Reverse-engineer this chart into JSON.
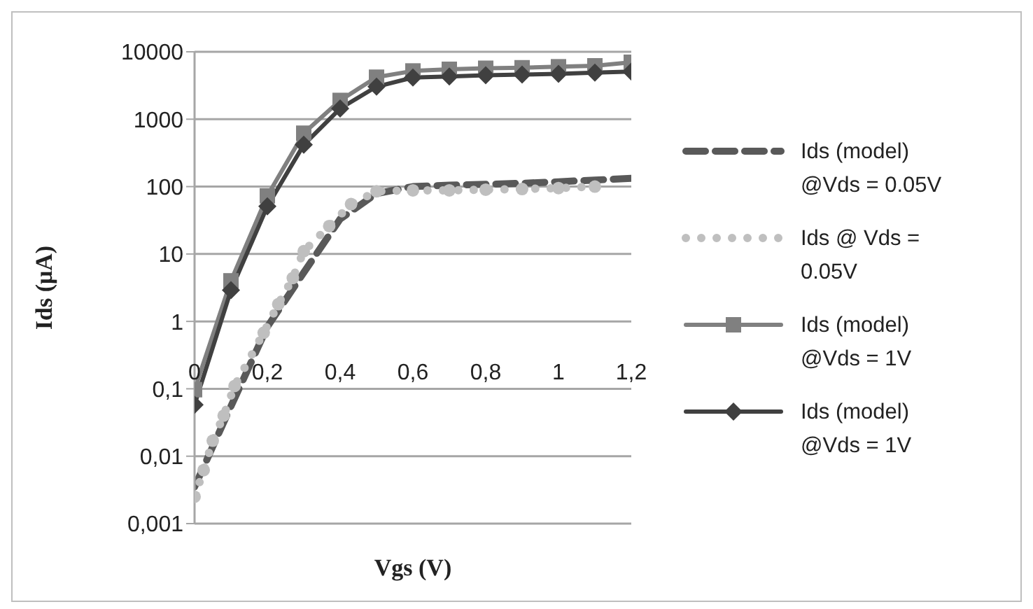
{
  "chart_data": {
    "type": "line",
    "xlabel": "Vgs (V)",
    "ylabel": "Ids (μA)",
    "log": "y",
    "grid": "y",
    "legend": "right",
    "x": [
      0,
      0.1,
      0.2,
      0.3,
      0.4,
      0.5,
      0.6,
      0.7,
      0.8,
      0.9,
      1.0,
      1.1,
      1.2
    ],
    "xlim": [
      0,
      1.2
    ],
    "xticks": [
      {
        "value": 0,
        "label": "0"
      },
      {
        "value": 0.2,
        "label": "0,2"
      },
      {
        "value": 0.4,
        "label": "0,4"
      },
      {
        "value": 0.6,
        "label": "0,6"
      },
      {
        "value": 0.8,
        "label": "0,8"
      },
      {
        "value": 1,
        "label": "1"
      },
      {
        "value": 1.2,
        "label": "1,2"
      }
    ],
    "ylim": [
      0.001,
      10000
    ],
    "yticks": [
      {
        "value": 0.001,
        "label": "0,001"
      },
      {
        "value": 0.01,
        "label": "0,01"
      },
      {
        "value": 0.1,
        "label": "0,1"
      },
      1,
      10,
      100,
      1000,
      10000
    ],
    "series": [
      {
        "name": "Ids (model) @Vds = 0.05V",
        "color": "#595959",
        "line_style": "dashed",
        "marker": "none",
        "values": [
          0.0035,
          0.055,
          0.83,
          5.3,
          33,
          79,
          100,
          105,
          108,
          112,
          118,
          125,
          133
        ]
      },
      {
        "name": "Ids @ Vds = 0.05V",
        "color": "#bfbfbf",
        "line_style": "dotted",
        "marker": "circle",
        "x": [
          0,
          0.025,
          0.05,
          0.08,
          0.11,
          0.19,
          0.23,
          0.27,
          0.3,
          0.37,
          0.43,
          0.5,
          0.6,
          0.7,
          0.8,
          0.9,
          1.0,
          1.1
        ],
        "values": [
          0.0025,
          0.0062,
          0.017,
          0.04,
          0.11,
          0.68,
          1.8,
          4.4,
          11,
          26,
          55,
          85,
          88,
          88,
          90,
          92,
          95,
          100
        ]
      },
      {
        "name": "Ids (model) @Vds = 1V",
        "color": "#808080",
        "line_style": "solid",
        "marker": "square",
        "values": [
          0.097,
          4.0,
          73,
          620,
          1900,
          4200,
          5200,
          5500,
          5700,
          5800,
          6000,
          6200,
          7000
        ]
      },
      {
        "name": "Ids (model) @Vds = 1V",
        "color": "#404040",
        "line_style": "solid",
        "marker": "diamond",
        "values": [
          0.058,
          2.9,
          51,
          417,
          1440,
          3040,
          4150,
          4300,
          4500,
          4600,
          4700,
          4900,
          5100
        ]
      }
    ]
  }
}
